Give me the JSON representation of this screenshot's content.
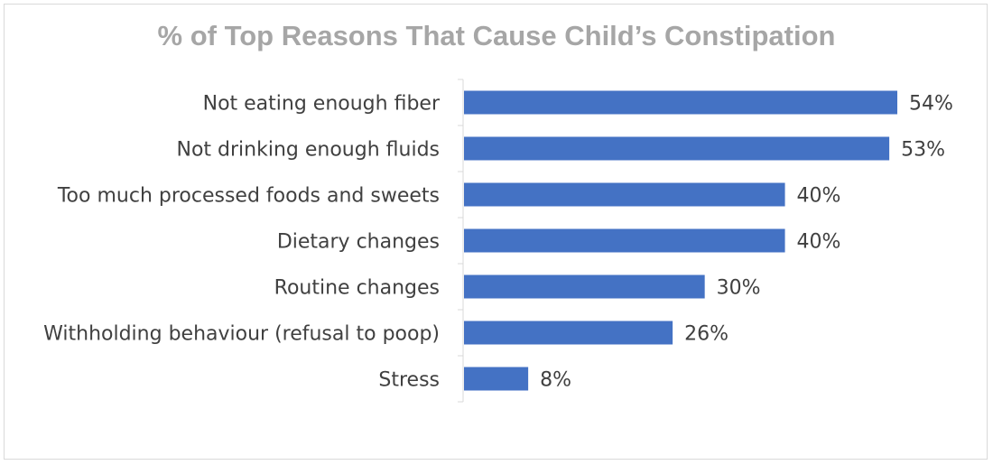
{
  "chart_data": {
    "type": "bar",
    "orientation": "horizontal",
    "title": "% of Top Reasons That Cause Child’s Constipation",
    "categories": [
      "Not eating enough fiber",
      "Not drinking enough fluids",
      "Too much processed foods and sweets",
      "Dietary changes",
      "Routine changes",
      "Withholding behaviour (refusal to poop)",
      "Stress"
    ],
    "values": [
      54,
      53,
      40,
      40,
      30,
      26,
      8
    ],
    "data_labels": [
      "54%",
      "53%",
      "40%",
      "40%",
      "30%",
      "26%",
      "8%"
    ],
    "xlim": [
      0,
      54
    ],
    "bar_color": "#4472c4",
    "grid": false,
    "legend": "none"
  }
}
